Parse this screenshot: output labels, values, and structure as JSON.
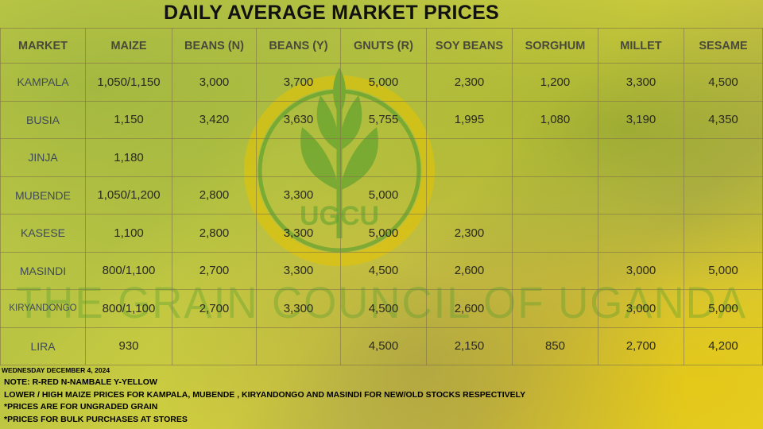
{
  "title": "DAILY AVERAGE MARKET PRICES",
  "watermark": {
    "logo_text": "UGCU",
    "text": "THE GRAIN COUNCIL OF UGANDA"
  },
  "colors": {
    "title": "#111111",
    "market_text": "#3f4a58",
    "grid": "#827846",
    "background_yellow": "#d4d03e",
    "logo_green": "#4a9a2a"
  },
  "table": {
    "headers": [
      "MARKET",
      "MAIZE",
      "BEANS (N)",
      "BEANS (Y)",
      "GNUTS (R)",
      "SOY BEANS",
      "SORGHUM",
      "MILLET",
      "SESAME"
    ],
    "rows": [
      [
        "KAMPALA",
        "1,050/1,150",
        "3,000",
        "3,700",
        "5,000",
        "2,300",
        "1,200",
        "3,300",
        "4,500"
      ],
      [
        "BUSIA",
        "1,150",
        "3,420",
        "3,630",
        "5,755",
        "1,995",
        "1,080",
        "3,190",
        "4,350"
      ],
      [
        "JINJA",
        "1,180",
        "",
        "",
        "",
        "",
        "",
        "",
        ""
      ],
      [
        "MUBENDE",
        "1,050/1,200",
        "2,800",
        "3,300",
        "5,000",
        "",
        "",
        "",
        ""
      ],
      [
        "KASESE",
        "1,100",
        "2,800",
        "3,300",
        "5,000",
        "2,300",
        "",
        "",
        ""
      ],
      [
        "MASINDI",
        "800/1,100",
        "2,700",
        "3,300",
        "4,500",
        "2,600",
        "",
        "3,000",
        "5,000"
      ],
      [
        "KIRYANDONGO",
        "800/1,100",
        "2,700",
        "3,300",
        "4,500",
        "2,600",
        "",
        "3,000",
        "5,000"
      ],
      [
        "LIRA",
        "930",
        "",
        "",
        "4,500",
        "2,150",
        "850",
        "2,700",
        "4,200"
      ]
    ]
  },
  "date": "WEDNESDAY DECEMBER 4, 2024",
  "notes": [
    "NOTE: R-RED N-NAMBALE Y-YELLOW",
    "LOWER / HIGH MAIZE  PRICES FOR KAMPALA, MUBENDE , KIRYANDONGO AND MASINDI  FOR NEW/OLD  STOCKS RESPECTIVELY",
    "*PRICES ARE FOR UNGRADED GRAIN",
    "*PRICES FOR BULK PURCHASES AT STORES"
  ]
}
